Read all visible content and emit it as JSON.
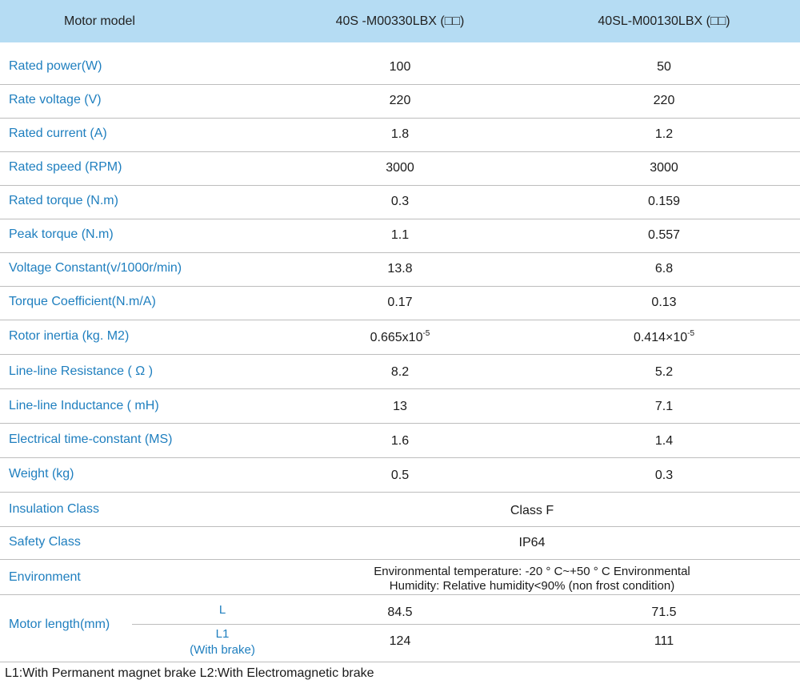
{
  "header": {
    "col0": "Motor model",
    "col1": "40S  -M00330LBX (□□)",
    "col2": "40SL-M00130LBX (□□)"
  },
  "rows": [
    {
      "label": "Rated power(W)",
      "v1": "100",
      "v2": "50"
    },
    {
      "label": "Rate voltage (V)",
      "v1": "220",
      "v2": "220"
    },
    {
      "label": "Rated current (A)",
      "v1": "1.8",
      "v2": "1.2"
    },
    {
      "label": "Rated speed (RPM)",
      "v1": "3000",
      "v2": "3000"
    },
    {
      "label": "Rated torque (N.m)",
      "v1": "0.3",
      "v2": "0.159"
    },
    {
      "label": "Peak torque (N.m)",
      "v1": "1.1",
      "v2": "0.557"
    },
    {
      "label": "Voltage Constant(v/1000r/min)",
      "v1": "13.8",
      "v2": "6.8"
    },
    {
      "label": "Torque Coefficient(N.m/A)",
      "v1": "0.17",
      "v2": "0.13"
    },
    {
      "label": "Rotor inertia (kg. M2)",
      "v1": "0.665x10",
      "v1_exp": "-5",
      "v2": "0.414×10",
      "v2_exp": "-5"
    },
    {
      "label": "Line-line Resistance ( Ω )",
      "v1": "8.2",
      "v2": "5.2"
    },
    {
      "label": "Line-line Inductance ( mH)",
      "v1": "13",
      "v2": "7.1"
    },
    {
      "label": "Electrical time-constant (MS)",
      "v1": "1.6",
      "v2": "1.4"
    },
    {
      "label": "Weight (kg)",
      "v1": "0.5",
      "v2": "0.3"
    },
    {
      "label": "Insulation Class",
      "span": "Class F"
    },
    {
      "label": "Safety Class",
      "span": "IP64"
    },
    {
      "label": "Environment",
      "span_line1": "Environmental temperature: -20 ° C~+50 ° C Environmental",
      "span_line2": "Humidity: Relative humidity<90% (non frost condition)"
    }
  ],
  "motor_length": {
    "label": "Motor length(mm)",
    "sub1": "L",
    "sub1_v1": "84.5",
    "sub1_v2": "71.5",
    "sub2_line1": "L1",
    "sub2_line2": "(With brake)",
    "sub2_v1": "124",
    "sub2_v2": "111"
  },
  "footnote": "L1:With Permanent magnet brake  L2:With Electromagnetic brake"
}
